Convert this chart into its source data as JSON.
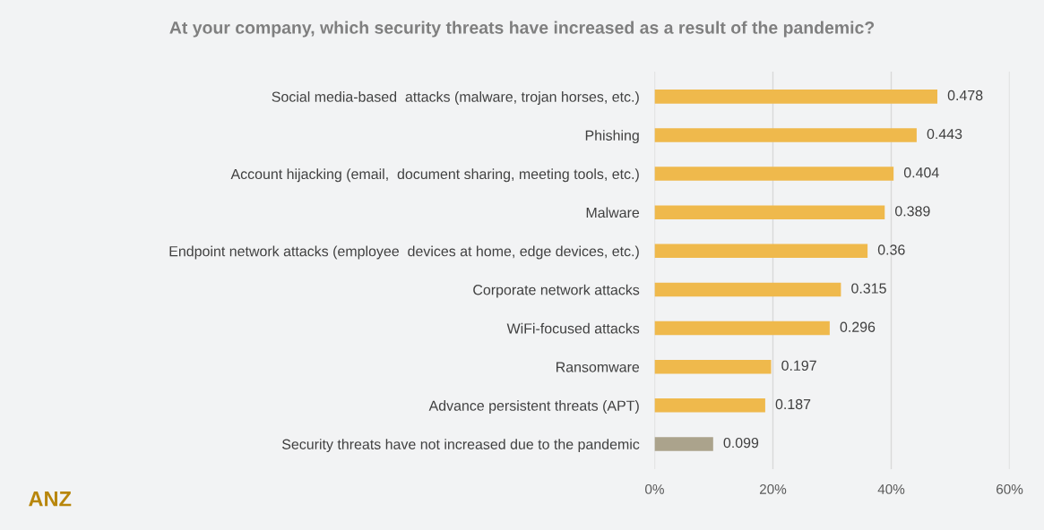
{
  "chart_data": {
    "type": "bar",
    "orientation": "horizontal",
    "title": "At your company, which security threats have increased as a result of the pandemic?",
    "categories": [
      "Social media-based  attacks (malware, trojan horses, etc.)",
      "Phishing",
      "Account hijacking (email,  document sharing, meeting tools, etc.)",
      "Malware",
      "Endpoint network attacks (employee  devices at home, edge devices, etc.)",
      "Corporate network attacks",
      "WiFi-focused attacks",
      "Ransomware",
      "Advance persistent threats (APT)",
      "Security threats have not increased due to the pandemic"
    ],
    "values": [
      0.478,
      0.443,
      0.404,
      0.389,
      0.36,
      0.315,
      0.296,
      0.197,
      0.187,
      0.099
    ],
    "colors": [
      "#efb94c",
      "#efb94c",
      "#efb94c",
      "#efb94c",
      "#efb94c",
      "#efb94c",
      "#efb94c",
      "#efb94c",
      "#efb94c",
      "#aba38c"
    ],
    "xlim": [
      0,
      0.6
    ],
    "xticks": [
      {
        "value": 0,
        "label": "0%"
      },
      {
        "value": 0.2,
        "label": "20%"
      },
      {
        "value": 0.4,
        "label": "40%"
      },
      {
        "value": 0.6,
        "label": "60%"
      }
    ],
    "grid": "x",
    "data_labels": true,
    "annotations": [
      "ANZ"
    ]
  }
}
